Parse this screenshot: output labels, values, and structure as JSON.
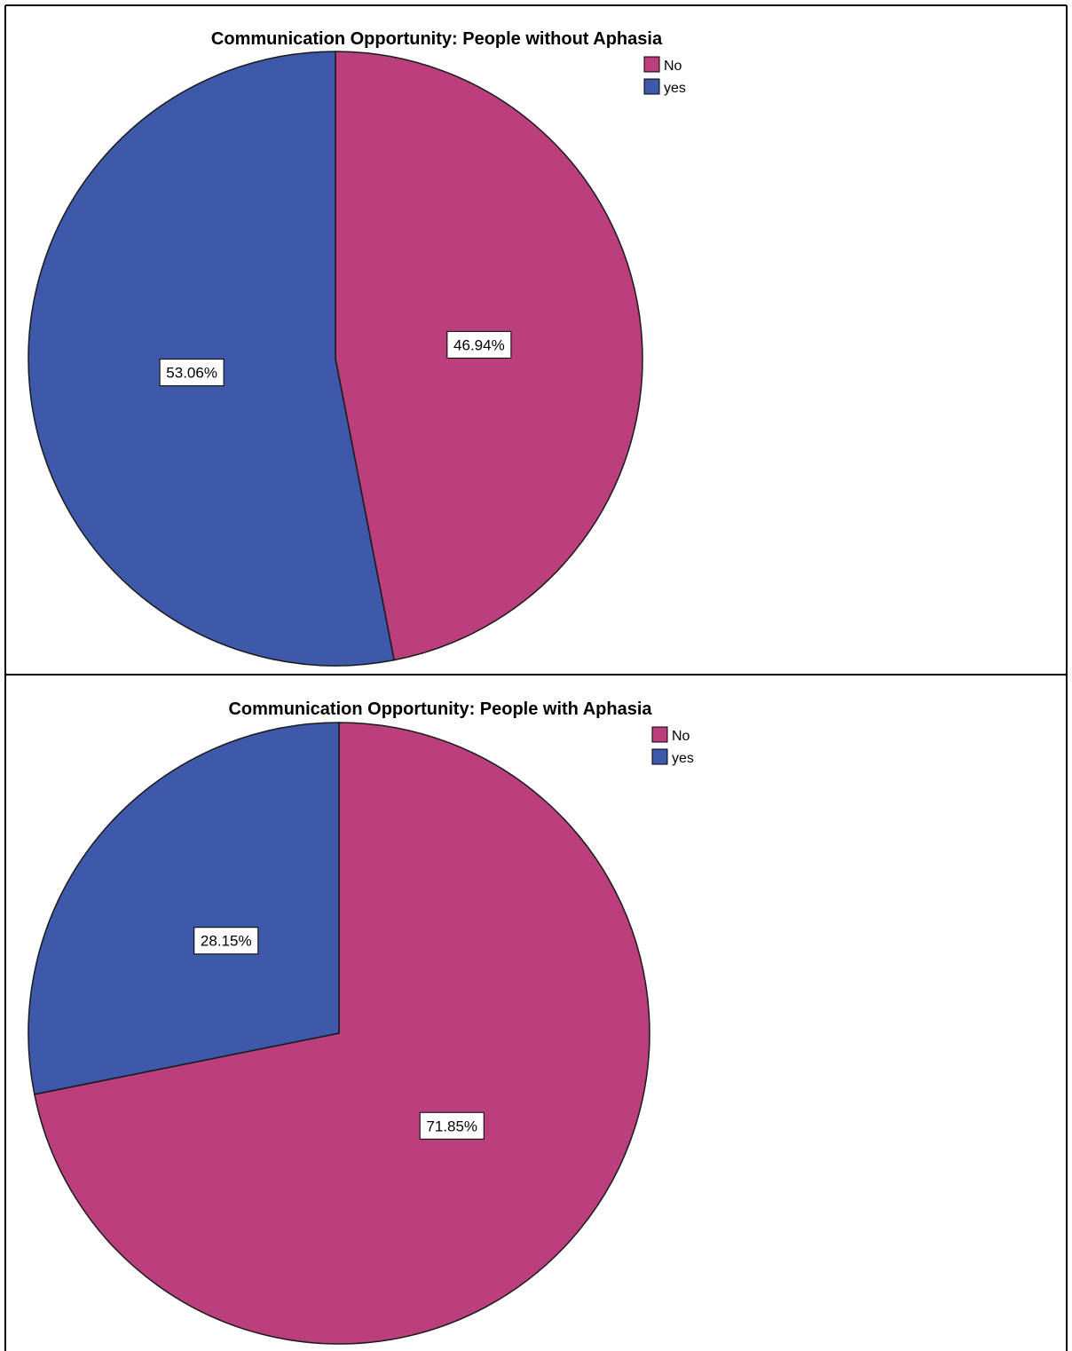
{
  "colors": {
    "no": "#bb3f7c",
    "yes": "#3e58aa",
    "outline": "#1a1a1a",
    "frame": "#000000"
  },
  "chart_data": [
    {
      "type": "pie",
      "title": "Communication Opportunity: People without Aphasia",
      "legend": {
        "placement": "top-right",
        "entries": [
          "No",
          "yes"
        ]
      },
      "slices": [
        {
          "label": "No",
          "value": 46.94,
          "display": "46.94%"
        },
        {
          "label": "yes",
          "value": 53.06,
          "display": "53.06%"
        }
      ]
    },
    {
      "type": "pie",
      "title": "Communication Opportunity: People with Aphasia",
      "legend": {
        "placement": "top-right",
        "entries": [
          "No",
          "yes"
        ]
      },
      "slices": [
        {
          "label": "No",
          "value": 71.85,
          "display": "71.85%"
        },
        {
          "label": "yes",
          "value": 28.15,
          "display": "28.15%"
        }
      ]
    }
  ]
}
